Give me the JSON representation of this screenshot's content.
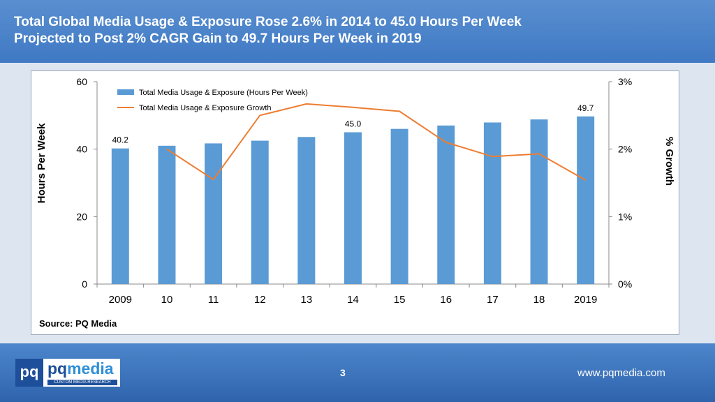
{
  "header": {
    "title_line1": "Total Global Media Usage & Exposure Rose 2.6% in 2014 to 45.0 Hours Per Week",
    "title_line2": "Projected to Post 2% CAGR Gain to 49.7 Hours Per Week in 2019",
    "colors": {
      "bg": "#4a84cb",
      "text": "#ffffff"
    }
  },
  "source": "Source: PQ Media",
  "footer": {
    "page_number": "3",
    "website": "www.pqmedia.com",
    "logo": {
      "mark": "pq",
      "name_a": "pq",
      "name_b": "media",
      "tagline": "CUSTOM MEDIA RESEARCH"
    }
  },
  "chart_data": {
    "type": "bar",
    "title": "",
    "categories": [
      "2009",
      "10",
      "11",
      "12",
      "13",
      "14",
      "15",
      "16",
      "17",
      "18",
      "2019"
    ],
    "ylabel": "Hours Per Week",
    "y2label": "% Growth",
    "ylim": [
      0,
      60
    ],
    "y2lim": [
      0,
      3
    ],
    "yticks": [
      "0",
      "20",
      "40",
      "60"
    ],
    "y2ticks": [
      "0%",
      "1%",
      "2%",
      "3%"
    ],
    "legend_position": "top-left",
    "series": [
      {
        "name": "Total Media Usage & Exposure (Hours Per Week)",
        "type": "bar",
        "axis": "left",
        "color": "#5b9bd5",
        "values": [
          40.2,
          41.0,
          41.7,
          42.5,
          43.6,
          45.0,
          46.0,
          47.0,
          47.9,
          48.8,
          49.7
        ]
      },
      {
        "name": "Total Media Usage & Exposure Growth",
        "type": "line",
        "axis": "right",
        "color": "#ed7d31",
        "values": [
          null,
          2.0,
          1.55,
          2.5,
          2.67,
          2.62,
          2.56,
          2.1,
          1.89,
          1.93,
          1.54
        ]
      }
    ],
    "data_labels": [
      {
        "index": 0,
        "text": "40.2"
      },
      {
        "index": 5,
        "text": "45.0"
      },
      {
        "index": 10,
        "text": "49.7"
      }
    ]
  }
}
